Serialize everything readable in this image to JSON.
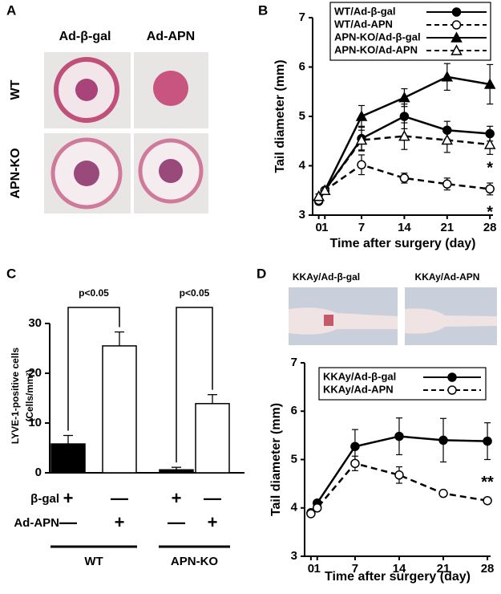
{
  "panel_labels": [
    "A",
    "B",
    "C",
    "D"
  ],
  "panel_a": {
    "columns": [
      "Ad-β-gal",
      "Ad-APN"
    ],
    "rows": [
      "WT",
      "APN-KO"
    ]
  },
  "panel_d_photos": [
    "KKAy/Ad-β-gal",
    "KKAy/Ad-APN"
  ],
  "chart_data": [
    {
      "type": "line",
      "x_label": "Time after surgery (day)",
      "y_label": "Tail diameter (mm)",
      "x": [
        0,
        1,
        7,
        14,
        21,
        28
      ],
      "xlim": [
        -1,
        28.5
      ],
      "xticks": [
        0,
        1,
        7,
        14,
        21,
        28
      ],
      "ylim": [
        3,
        7
      ],
      "yticks": [
        3,
        4,
        5,
        6,
        7
      ],
      "series": [
        {
          "name": "WT/Ad-β-gal",
          "color": "#000000",
          "marker": "circle",
          "filled": true,
          "dashed": false,
          "values": [
            3.28,
            3.5,
            4.55,
            5.0,
            4.72,
            4.65
          ],
          "errors": [
            0.05,
            0.05,
            0.25,
            0.25,
            0.18,
            0.15
          ]
        },
        {
          "name": "WT/Ad-APN",
          "color": "#000000",
          "marker": "circle",
          "filled": false,
          "dashed": true,
          "values": [
            3.3,
            3.5,
            4.02,
            3.75,
            3.63,
            3.53
          ],
          "errors": [
            0.05,
            0.05,
            0.2,
            0.1,
            0.12,
            0.12
          ]
        },
        {
          "name": "APN-KO/Ad-β-gal",
          "color": "#000000",
          "marker": "triangle",
          "filled": true,
          "dashed": false,
          "values": [
            3.38,
            3.5,
            5.0,
            5.38,
            5.8,
            5.65
          ],
          "errors": [
            0.05,
            0.05,
            0.22,
            0.18,
            0.27,
            0.4
          ]
        },
        {
          "name": "APN-KO/Ad-APN",
          "color": "#000000",
          "marker": "triangle",
          "filled": false,
          "dashed": true,
          "values": [
            3.38,
            3.5,
            4.52,
            4.6,
            4.52,
            4.43
          ],
          "errors": [
            0.05,
            0.05,
            0.2,
            0.27,
            0.25,
            0.2
          ]
        }
      ],
      "annotations": [
        "*",
        "*"
      ]
    },
    {
      "type": "bar",
      "y_label": [
        "LYVE-1-positive cells",
        "(Cells/mm²)"
      ],
      "categories": [
        null,
        null,
        null,
        null
      ],
      "values": [
        5.8,
        25.5,
        0.6,
        13.9
      ],
      "errors": [
        1.7,
        2.8,
        0.5,
        1.8
      ],
      "colors": [
        "#000000",
        "#ffffff",
        "#000000",
        "#ffffff"
      ],
      "ylim": [
        0,
        30
      ],
      "yticks": [
        0,
        10,
        20,
        30
      ],
      "annotations": [
        "p<0.05",
        "p<0.05"
      ],
      "rows": [
        {
          "label": "β-gal",
          "cells": [
            "+",
            "—",
            "+",
            "—"
          ]
        },
        {
          "label": "Ad-APN",
          "cells": [
            "—",
            "+",
            "—",
            "+"
          ]
        }
      ],
      "groups": [
        "WT",
        "APN-KO"
      ]
    },
    {
      "type": "line",
      "x_label": "Time after surgery (day)",
      "y_label": "Tail diameter (mm)",
      "x": [
        0,
        1,
        7,
        14,
        21,
        28
      ],
      "xlim": [
        -1,
        28.5
      ],
      "xticks": [
        0,
        1,
        7,
        14,
        21,
        28
      ],
      "ylim": [
        3,
        7
      ],
      "yticks": [
        3,
        4,
        5,
        6,
        7
      ],
      "series": [
        {
          "name": "KKAy/Ad-β-gal",
          "color": "#000000",
          "marker": "circle",
          "filled": true,
          "dashed": false,
          "values": [
            3.9,
            4.1,
            5.27,
            5.48,
            5.4,
            5.38
          ],
          "errors": [
            0.03,
            0.05,
            0.35,
            0.38,
            0.45,
            0.38
          ]
        },
        {
          "name": "KKAy/Ad-APN",
          "color": "#000000",
          "marker": "circle",
          "filled": false,
          "dashed": true,
          "values": [
            3.88,
            4.0,
            4.92,
            4.68,
            4.3,
            4.15
          ],
          "errors": [
            0.03,
            0.05,
            0.15,
            0.17,
            0.03,
            0.03
          ]
        }
      ],
      "annotations": [
        "**"
      ]
    }
  ]
}
